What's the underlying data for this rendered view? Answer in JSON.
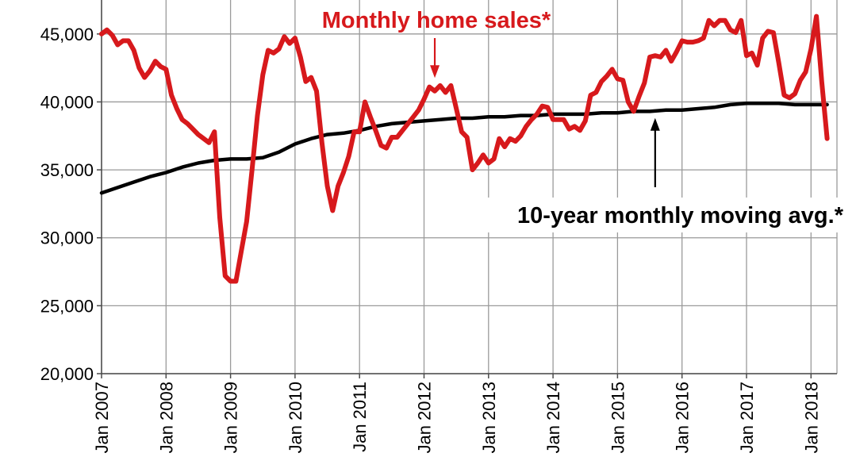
{
  "chart_data": {
    "type": "line",
    "title": "",
    "xlabel": "",
    "ylabel": "",
    "ylim": [
      20000,
      47500
    ],
    "yticks": [
      20000,
      25000,
      30000,
      35000,
      40000,
      45000
    ],
    "ytick_labels": [
      "20,000",
      "25,000",
      "30,000",
      "35,000",
      "40,000",
      "45,000"
    ],
    "x_start": "2007-01",
    "x_end": "2018-03",
    "xtick_labels": [
      "Jan 2007",
      "Jan 2008",
      "Jan 2009",
      "Jan 2010",
      "Jan 2011",
      "Jan 2012",
      "Jan 2013",
      "Jan 2014",
      "Jan 2015",
      "Jan 2016",
      "Jan 2017",
      "Jan 2018"
    ],
    "grid": true,
    "series": [
      {
        "name": "Monthly home sales*",
        "color": "#d7191c",
        "points": [
          [
            "2007-01",
            45000
          ],
          [
            "2007-02",
            45300
          ],
          [
            "2007-03",
            44900
          ],
          [
            "2007-04",
            44200
          ],
          [
            "2007-05",
            44500
          ],
          [
            "2007-06",
            44500
          ],
          [
            "2007-07",
            43800
          ],
          [
            "2007-08",
            42500
          ],
          [
            "2007-09",
            41800
          ],
          [
            "2007-10",
            42300
          ],
          [
            "2007-11",
            43000
          ],
          [
            "2007-12",
            42600
          ],
          [
            "2008-01",
            42400
          ],
          [
            "2008-02",
            40500
          ],
          [
            "2008-03",
            39500
          ],
          [
            "2008-04",
            38700
          ],
          [
            "2008-05",
            38400
          ],
          [
            "2008-06",
            38000
          ],
          [
            "2008-07",
            37600
          ],
          [
            "2008-08",
            37300
          ],
          [
            "2008-09",
            37000
          ],
          [
            "2008-10",
            37800
          ],
          [
            "2008-11",
            31500
          ],
          [
            "2008-12",
            27200
          ],
          [
            "2009-01",
            26800
          ],
          [
            "2009-02",
            26800
          ],
          [
            "2009-03",
            29000
          ],
          [
            "2009-04",
            31200
          ],
          [
            "2009-05",
            35000
          ],
          [
            "2009-06",
            39000
          ],
          [
            "2009-07",
            42000
          ],
          [
            "2009-08",
            43800
          ],
          [
            "2009-09",
            43600
          ],
          [
            "2009-10",
            43900
          ],
          [
            "2009-11",
            44800
          ],
          [
            "2009-12",
            44300
          ],
          [
            "2010-01",
            44700
          ],
          [
            "2010-02",
            43300
          ],
          [
            "2010-03",
            41500
          ],
          [
            "2010-04",
            41800
          ],
          [
            "2010-05",
            40800
          ],
          [
            "2010-06",
            37000
          ],
          [
            "2010-07",
            33800
          ],
          [
            "2010-08",
            32000
          ],
          [
            "2010-09",
            33800
          ],
          [
            "2010-10",
            34800
          ],
          [
            "2010-11",
            36000
          ],
          [
            "2010-12",
            37800
          ],
          [
            "2011-01",
            37800
          ],
          [
            "2011-02",
            40000
          ],
          [
            "2011-03",
            38900
          ],
          [
            "2011-04",
            37900
          ],
          [
            "2011-05",
            36800
          ],
          [
            "2011-06",
            36600
          ],
          [
            "2011-07",
            37400
          ],
          [
            "2011-08",
            37400
          ],
          [
            "2011-09",
            37900
          ],
          [
            "2011-10",
            38400
          ],
          [
            "2011-11",
            38900
          ],
          [
            "2011-12",
            39400
          ],
          [
            "2012-01",
            40200
          ],
          [
            "2012-02",
            41100
          ],
          [
            "2012-03",
            40800
          ],
          [
            "2012-04",
            41200
          ],
          [
            "2012-05",
            40700
          ],
          [
            "2012-06",
            41200
          ],
          [
            "2012-07",
            39500
          ],
          [
            "2012-08",
            37800
          ],
          [
            "2012-09",
            37400
          ],
          [
            "2012-10",
            35000
          ],
          [
            "2012-11",
            35500
          ],
          [
            "2012-12",
            36100
          ],
          [
            "2013-01",
            35500
          ],
          [
            "2013-02",
            35800
          ],
          [
            "2013-03",
            37300
          ],
          [
            "2013-04",
            36700
          ],
          [
            "2013-05",
            37300
          ],
          [
            "2013-06",
            37100
          ],
          [
            "2013-07",
            37500
          ],
          [
            "2013-08",
            38200
          ],
          [
            "2013-09",
            38700
          ],
          [
            "2013-10",
            39100
          ],
          [
            "2013-11",
            39700
          ],
          [
            "2013-12",
            39600
          ],
          [
            "2014-01",
            38700
          ],
          [
            "2014-02",
            38700
          ],
          [
            "2014-03",
            38700
          ],
          [
            "2014-04",
            38000
          ],
          [
            "2014-05",
            38200
          ],
          [
            "2014-06",
            37900
          ],
          [
            "2014-07",
            38600
          ],
          [
            "2014-08",
            40500
          ],
          [
            "2014-09",
            40700
          ],
          [
            "2014-10",
            41500
          ],
          [
            "2014-11",
            41900
          ],
          [
            "2014-12",
            42400
          ],
          [
            "2015-01",
            41700
          ],
          [
            "2015-02",
            41600
          ],
          [
            "2015-03",
            40000
          ],
          [
            "2015-04",
            39300
          ],
          [
            "2015-05",
            40400
          ],
          [
            "2015-06",
            41400
          ],
          [
            "2015-07",
            43300
          ],
          [
            "2015-08",
            43400
          ],
          [
            "2015-09",
            43300
          ],
          [
            "2015-10",
            43800
          ],
          [
            "2015-11",
            43000
          ],
          [
            "2015-12",
            43700
          ],
          [
            "2016-01",
            44500
          ],
          [
            "2016-02",
            44400
          ],
          [
            "2016-03",
            44400
          ],
          [
            "2016-04",
            44500
          ],
          [
            "2016-05",
            44700
          ],
          [
            "2016-06",
            46000
          ],
          [
            "2016-07",
            45600
          ],
          [
            "2016-08",
            46000
          ],
          [
            "2016-09",
            46000
          ],
          [
            "2016-10",
            45300
          ],
          [
            "2016-11",
            45100
          ],
          [
            "2016-12",
            46000
          ],
          [
            "2017-01",
            43400
          ],
          [
            "2017-02",
            43600
          ],
          [
            "2017-03",
            42700
          ],
          [
            "2017-04",
            44700
          ],
          [
            "2017-05",
            45200
          ],
          [
            "2017-06",
            45100
          ],
          [
            "2017-07",
            42900
          ],
          [
            "2017-08",
            40500
          ],
          [
            "2017-09",
            40300
          ],
          [
            "2017-10",
            40600
          ],
          [
            "2017-11",
            41600
          ],
          [
            "2017-12",
            42200
          ],
          [
            "2018-01",
            43900
          ],
          [
            "2018-02",
            46300
          ],
          [
            "2018-03",
            41500
          ],
          [
            "2018-04",
            37300
          ]
        ]
      },
      {
        "name": "10-year monthly moving avg.*",
        "color": "#000000",
        "points": [
          [
            "2007-01",
            33300
          ],
          [
            "2007-04",
            33700
          ],
          [
            "2007-07",
            34100
          ],
          [
            "2007-10",
            34500
          ],
          [
            "2008-01",
            34800
          ],
          [
            "2008-04",
            35200
          ],
          [
            "2008-07",
            35500
          ],
          [
            "2008-10",
            35700
          ],
          [
            "2009-01",
            35800
          ],
          [
            "2009-04",
            35800
          ],
          [
            "2009-07",
            35900
          ],
          [
            "2009-10",
            36300
          ],
          [
            "2010-01",
            36900
          ],
          [
            "2010-04",
            37300
          ],
          [
            "2010-07",
            37600
          ],
          [
            "2010-10",
            37700
          ],
          [
            "2011-01",
            37900
          ],
          [
            "2011-04",
            38200
          ],
          [
            "2011-07",
            38400
          ],
          [
            "2011-10",
            38500
          ],
          [
            "2012-01",
            38600
          ],
          [
            "2012-04",
            38700
          ],
          [
            "2012-07",
            38800
          ],
          [
            "2012-10",
            38800
          ],
          [
            "2013-01",
            38900
          ],
          [
            "2013-04",
            38900
          ],
          [
            "2013-07",
            39000
          ],
          [
            "2013-10",
            39000
          ],
          [
            "2014-01",
            39100
          ],
          [
            "2014-04",
            39100
          ],
          [
            "2014-07",
            39100
          ],
          [
            "2014-10",
            39200
          ],
          [
            "2015-01",
            39200
          ],
          [
            "2015-04",
            39300
          ],
          [
            "2015-07",
            39300
          ],
          [
            "2015-10",
            39400
          ],
          [
            "2016-01",
            39400
          ],
          [
            "2016-04",
            39500
          ],
          [
            "2016-07",
            39600
          ],
          [
            "2016-10",
            39800
          ],
          [
            "2017-01",
            39900
          ],
          [
            "2017-04",
            39900
          ],
          [
            "2017-07",
            39900
          ],
          [
            "2017-10",
            39800
          ],
          [
            "2018-01",
            39800
          ],
          [
            "2018-04",
            39800
          ]
        ]
      }
    ],
    "annotations": [
      {
        "text": "Monthly home sales*",
        "color": "#d7191c",
        "arrow_to": [
          "2012-03",
          41300
        ]
      },
      {
        "text": "10-year monthly moving avg.*",
        "color": "#000000",
        "arrow_to": [
          "2015-08",
          39400
        ]
      }
    ]
  }
}
